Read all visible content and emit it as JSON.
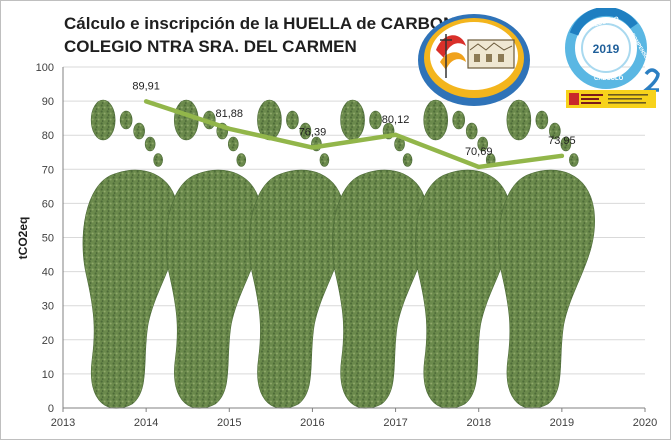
{
  "chart_data": {
    "type": "line",
    "title": "Cálculo e inscripción de la HUELLA de CARBONO",
    "subtitle": "COLEGIO NTRA SRA. DEL CARMEN",
    "ylabel": "tCO2eq",
    "xlabel": "",
    "xlim": [
      2013,
      2020
    ],
    "ylim": [
      0,
      100
    ],
    "x_ticks": [
      "2013",
      "2014",
      "2015",
      "2016",
      "2017",
      "2018",
      "2019",
      "2020"
    ],
    "y_ticks": [
      "0",
      "10",
      "20",
      "30",
      "40",
      "50",
      "60",
      "70",
      "80",
      "90",
      "100"
    ],
    "grid": true,
    "series": [
      {
        "x": [
          2014,
          2015,
          2016,
          2017,
          2018,
          2019
        ],
        "values": [
          89.91,
          81.88,
          76.39,
          80.12,
          70.69,
          73.95
        ],
        "labels": [
          "89,91",
          "81,88",
          "76,39",
          "80,12",
          "70,69",
          "73,95"
        ]
      }
    ],
    "colors": {
      "line": "#92b64a",
      "footprint": "#5f7d46",
      "axis": "#808080",
      "grid": "#d9d9d9"
    }
  },
  "logos": {
    "calc_badge_top": "REDUZCO",
    "calc_badge_year": "2019",
    "calc_badge_bottom": "CALCULO",
    "calc_badge_side": "COMPENSO"
  }
}
